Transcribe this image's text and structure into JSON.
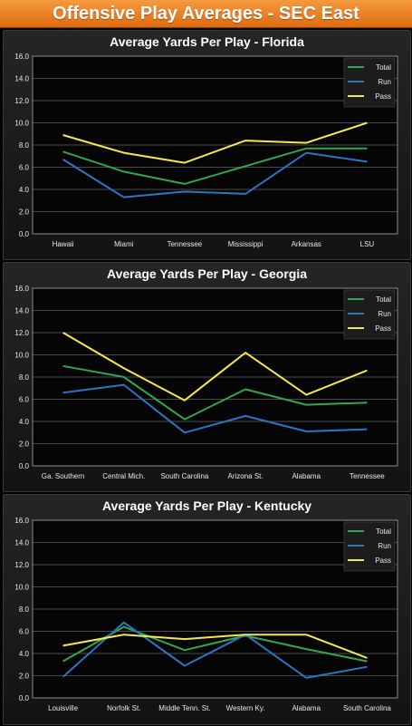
{
  "banner": {
    "title": "Offensive Play Averages - SEC East"
  },
  "colors": {
    "total": "#2fa84f",
    "run": "#2e74c4",
    "pass": "#f5ea4a",
    "banner": "#ec7f22"
  },
  "chart_data": [
    {
      "type": "line",
      "title": "Average Yards Per Play - Florida",
      "categories": [
        "Hawaii",
        "Miami",
        "Tennessee",
        "Mississippi",
        "Arkansas",
        "LSU"
      ],
      "ylim": [
        0,
        16
      ],
      "yticks": [
        "0.0",
        "2.0",
        "4.0",
        "6.0",
        "8.0",
        "10.0",
        "12.0",
        "14.0",
        "16.0"
      ],
      "grid": true,
      "legend": "top-right",
      "series": [
        {
          "name": "Total",
          "values": [
            7.4,
            5.6,
            4.5,
            6.1,
            7.7,
            7.7
          ]
        },
        {
          "name": "Run",
          "values": [
            6.7,
            3.3,
            3.8,
            3.6,
            7.3,
            6.5
          ]
        },
        {
          "name": "Pass",
          "values": [
            8.9,
            7.3,
            6.4,
            8.4,
            8.2,
            10.0
          ]
        }
      ]
    },
    {
      "type": "line",
      "title": "Average Yards Per Play - Georgia",
      "categories": [
        "Ga. Southern",
        "Central Mich.",
        "South Carolina",
        "Arizona St.",
        "Alabama",
        "Tennessee"
      ],
      "ylim": [
        0,
        16
      ],
      "yticks": [
        "0.0",
        "2.0",
        "4.0",
        "6.0",
        "8.0",
        "10.0",
        "12.0",
        "14.0",
        "16.0"
      ],
      "grid": true,
      "legend": "top-right",
      "series": [
        {
          "name": "Total",
          "values": [
            9.0,
            8.0,
            4.2,
            6.9,
            5.5,
            5.7
          ]
        },
        {
          "name": "Run",
          "values": [
            6.6,
            7.3,
            3.0,
            4.5,
            3.1,
            3.3
          ]
        },
        {
          "name": "Pass",
          "values": [
            12.0,
            8.8,
            5.9,
            10.2,
            6.4,
            8.6
          ]
        }
      ]
    },
    {
      "type": "line",
      "title": "Average Yards Per Play - Kentucky",
      "categories": [
        "Louisville",
        "Norfolk St.",
        "Middle Tenn. St.",
        "Western Ky.",
        "Alabama",
        "South Carolina"
      ],
      "ylim": [
        0,
        16
      ],
      "yticks": [
        "0.0",
        "2.0",
        "4.0",
        "6.0",
        "8.0",
        "10.0",
        "12.0",
        "14.0",
        "16.0"
      ],
      "grid": true,
      "legend": "top-right",
      "series": [
        {
          "name": "Total",
          "values": [
            3.3,
            6.4,
            4.3,
            5.6,
            4.4,
            3.3
          ]
        },
        {
          "name": "Run",
          "values": [
            1.9,
            6.8,
            2.9,
            5.7,
            1.8,
            2.8
          ]
        },
        {
          "name": "Pass",
          "values": [
            4.7,
            5.7,
            5.3,
            5.7,
            5.7,
            3.6
          ]
        }
      ]
    }
  ]
}
